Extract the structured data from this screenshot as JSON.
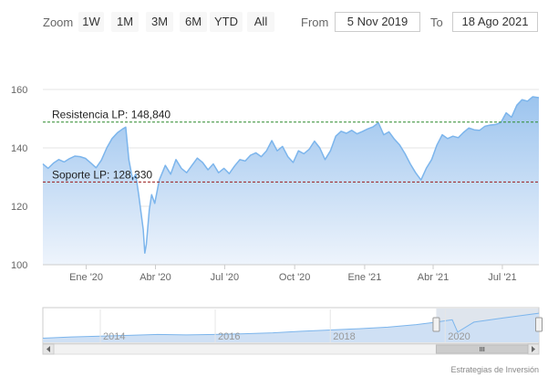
{
  "toolbar": {
    "zoom_label": "Zoom",
    "zoom_buttons": [
      "1W",
      "1M",
      "3M",
      "6M",
      "YTD",
      "All"
    ],
    "from_label": "From",
    "from_value": "5 Nov 2019",
    "to_label": "To",
    "to_value": "18 Ago 2021"
  },
  "chart_data": {
    "type": "area",
    "title": "",
    "xlabel": "",
    "ylabel": "",
    "x_range": [
      "2019-11-05",
      "2021-08-18"
    ],
    "ylim": [
      100,
      160
    ],
    "y_ticks": [
      "100",
      "120",
      "140",
      "160"
    ],
    "x_ticks": [
      "Ene '20",
      "Abr '20",
      "Jul '20",
      "Oct '20",
      "Ene '21",
      "Abr '21",
      "Jul '21"
    ],
    "grid": true,
    "series": [
      {
        "points": [
          [
            "2019-11-05",
            134.5
          ],
          [
            "2019-11-12",
            133.0
          ],
          [
            "2019-11-19",
            134.8
          ],
          [
            "2019-11-26",
            136.0
          ],
          [
            "2019-12-03",
            135.2
          ],
          [
            "2019-12-10",
            136.3
          ],
          [
            "2019-12-17",
            137.2
          ],
          [
            "2019-12-24",
            137.0
          ],
          [
            "2019-12-31",
            136.4
          ],
          [
            "2020-01-07",
            134.8
          ],
          [
            "2020-01-14",
            133.2
          ],
          [
            "2020-01-21",
            135.8
          ],
          [
            "2020-01-28",
            140.0
          ],
          [
            "2020-02-04",
            143.2
          ],
          [
            "2020-02-11",
            145.2
          ],
          [
            "2020-02-18",
            146.5
          ],
          [
            "2020-02-22",
            147.1
          ],
          [
            "2020-02-26",
            136.0
          ],
          [
            "2020-03-02",
            129.0
          ],
          [
            "2020-03-06",
            131.0
          ],
          [
            "2020-03-10",
            124.0
          ],
          [
            "2020-03-13",
            118.0
          ],
          [
            "2020-03-16",
            112.0
          ],
          [
            "2020-03-18",
            104.0
          ],
          [
            "2020-03-20",
            107.0
          ],
          [
            "2020-03-24",
            119.0
          ],
          [
            "2020-03-27",
            124.0
          ],
          [
            "2020-03-31",
            121.0
          ],
          [
            "2020-04-06",
            129.0
          ],
          [
            "2020-04-14",
            134.0
          ],
          [
            "2020-04-21",
            131.0
          ],
          [
            "2020-04-28",
            136.0
          ],
          [
            "2020-05-05",
            133.0
          ],
          [
            "2020-05-12",
            131.5
          ],
          [
            "2020-05-19",
            134.0
          ],
          [
            "2020-05-26",
            136.5
          ],
          [
            "2020-06-02",
            135.0
          ],
          [
            "2020-06-09",
            132.5
          ],
          [
            "2020-06-16",
            134.5
          ],
          [
            "2020-06-23",
            131.5
          ],
          [
            "2020-06-30",
            133.0
          ],
          [
            "2020-07-07",
            131.2
          ],
          [
            "2020-07-14",
            133.8
          ],
          [
            "2020-07-21",
            136.0
          ],
          [
            "2020-07-28",
            135.5
          ],
          [
            "2020-08-04",
            137.5
          ],
          [
            "2020-08-11",
            138.3
          ],
          [
            "2020-08-18",
            137.0
          ],
          [
            "2020-08-25",
            139.0
          ],
          [
            "2020-09-01",
            142.5
          ],
          [
            "2020-09-08",
            139.0
          ],
          [
            "2020-09-15",
            140.5
          ],
          [
            "2020-09-22",
            137.0
          ],
          [
            "2020-09-29",
            135.0
          ],
          [
            "2020-10-06",
            139.0
          ],
          [
            "2020-10-13",
            138.0
          ],
          [
            "2020-10-20",
            139.5
          ],
          [
            "2020-10-27",
            142.3
          ],
          [
            "2020-11-03",
            140.0
          ],
          [
            "2020-11-10",
            136.0
          ],
          [
            "2020-11-17",
            139.0
          ],
          [
            "2020-11-24",
            144.0
          ],
          [
            "2020-12-01",
            145.7
          ],
          [
            "2020-12-08",
            145.0
          ],
          [
            "2020-12-15",
            146.0
          ],
          [
            "2020-12-22",
            144.8
          ],
          [
            "2020-12-29",
            145.6
          ],
          [
            "2021-01-05",
            146.5
          ],
          [
            "2021-01-12",
            147.2
          ],
          [
            "2021-01-19",
            148.6
          ],
          [
            "2021-01-26",
            144.5
          ],
          [
            "2021-02-02",
            145.5
          ],
          [
            "2021-02-09",
            143.0
          ],
          [
            "2021-02-16",
            141.0
          ],
          [
            "2021-02-23",
            138.0
          ],
          [
            "2021-03-02",
            134.5
          ],
          [
            "2021-03-09",
            131.5
          ],
          [
            "2021-03-16",
            129.0
          ],
          [
            "2021-03-23",
            133.0
          ],
          [
            "2021-03-30",
            136.0
          ],
          [
            "2021-04-06",
            141.0
          ],
          [
            "2021-04-13",
            144.5
          ],
          [
            "2021-04-20",
            143.2
          ],
          [
            "2021-04-27",
            144.0
          ],
          [
            "2021-05-04",
            143.5
          ],
          [
            "2021-05-11",
            145.3
          ],
          [
            "2021-05-18",
            146.8
          ],
          [
            "2021-05-25",
            146.2
          ],
          [
            "2021-06-01",
            146.0
          ],
          [
            "2021-06-08",
            147.4
          ],
          [
            "2021-06-15",
            147.8
          ],
          [
            "2021-06-22",
            148.0
          ],
          [
            "2021-06-29",
            148.7
          ],
          [
            "2021-07-06",
            152.0
          ],
          [
            "2021-07-13",
            150.5
          ],
          [
            "2021-07-20",
            154.6
          ],
          [
            "2021-07-27",
            156.5
          ],
          [
            "2021-08-03",
            156.0
          ],
          [
            "2021-08-10",
            157.5
          ],
          [
            "2021-08-18",
            157.2
          ]
        ]
      }
    ],
    "annotations": [
      {
        "label": "Resistencia LP: 148,840",
        "value": 148.84,
        "color": "#2e8b2e"
      },
      {
        "label": "Soporte LP: 128,330",
        "value": 128.33,
        "color": "#9a1b1b"
      }
    ],
    "navigator": {
      "x_labels": [
        "2014",
        "2016",
        "2018",
        "2020"
      ],
      "x_range": [
        "2013-01-01",
        "2021-08-18"
      ],
      "selected_range": [
        "2019-11-05",
        "2021-08-18"
      ],
      "points": [
        [
          "2013-01-01",
          95
        ],
        [
          "2013-07-01",
          98
        ],
        [
          "2014-01-01",
          100
        ],
        [
          "2014-07-01",
          102
        ],
        [
          "2015-01-01",
          104
        ],
        [
          "2015-07-01",
          103
        ],
        [
          "2016-01-01",
          104
        ],
        [
          "2016-07-01",
          106
        ],
        [
          "2017-01-01",
          108
        ],
        [
          "2017-07-01",
          112
        ],
        [
          "2018-01-01",
          115
        ],
        [
          "2018-07-01",
          118
        ],
        [
          "2019-01-01",
          122
        ],
        [
          "2019-07-01",
          128
        ],
        [
          "2019-11-05",
          134
        ],
        [
          "2020-02-15",
          140
        ],
        [
          "2020-03-20",
          110
        ],
        [
          "2020-07-01",
          134
        ],
        [
          "2021-01-01",
          144
        ],
        [
          "2021-08-18",
          156
        ]
      ]
    },
    "colors": {
      "line": "#7cb5ec",
      "area_top": "#9cc4ee",
      "area_bottom": "#eef4fc"
    }
  },
  "credits": "Estrategias de Inversión"
}
